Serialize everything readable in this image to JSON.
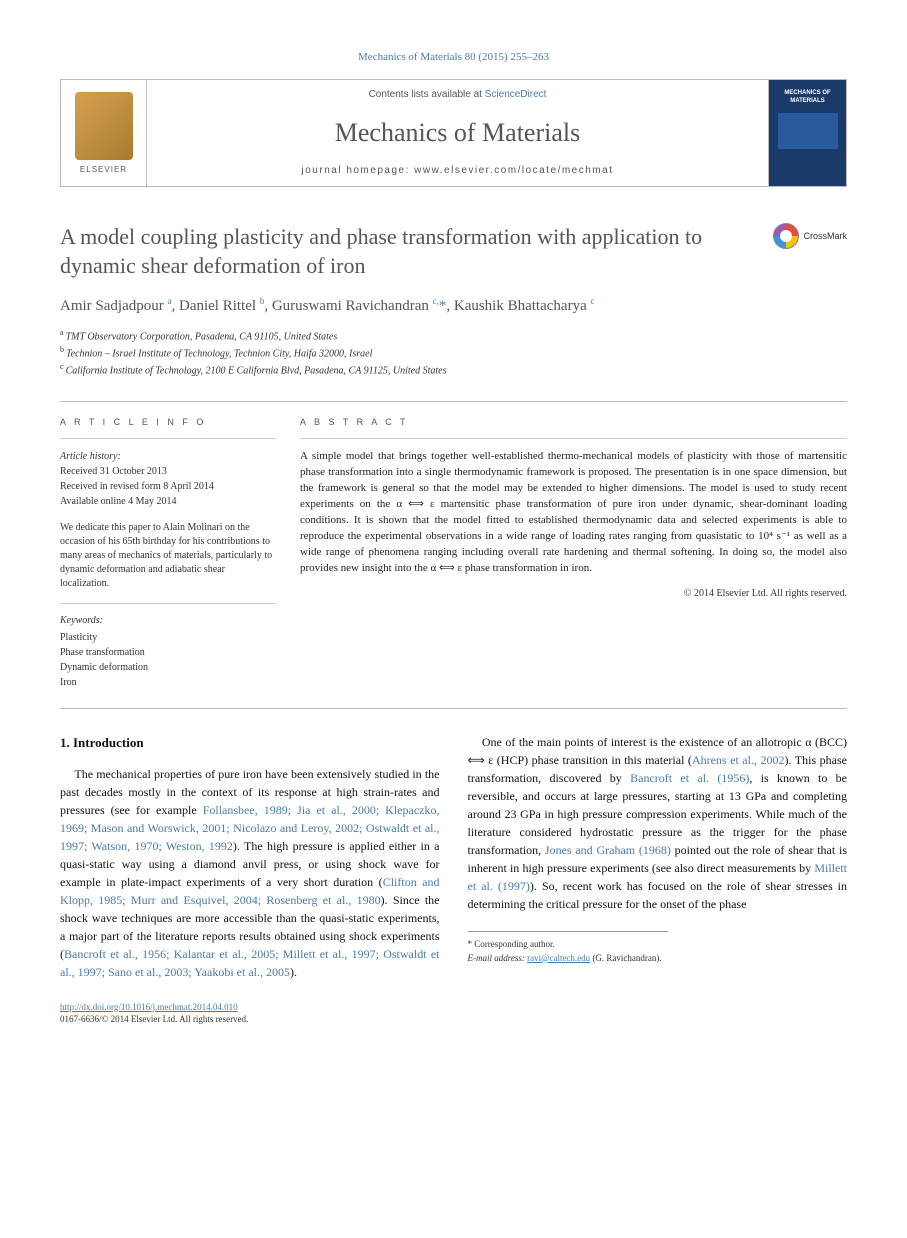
{
  "journal_ref": "Mechanics of Materials 80 (2015) 255–263",
  "header": {
    "contents_prefix": "Contents lists available at ",
    "contents_link": "ScienceDirect",
    "journal_name": "Mechanics of Materials",
    "homepage_prefix": "journal homepage: ",
    "homepage_url": "www.elsevier.com/locate/mechmat",
    "publisher": "ELSEVIER",
    "cover_title": "MECHANICS OF MATERIALS"
  },
  "title": "A model coupling plasticity and phase transformation with application to dynamic shear deformation of iron",
  "crossmark_label": "CrossMark",
  "authors_html": "Amir Sadjadpour <sup>a</sup>, Daniel Rittel <sup>b</sup>, Guruswami Ravichandran <sup>c,</sup><a class=\"author-link\" href=\"#\">*</a>, Kaushik Bhattacharya <sup>c</sup>",
  "affiliations": [
    {
      "sup": "a",
      "text": "TMT Observatory Corporation, Pasadena, CA 91105, United States"
    },
    {
      "sup": "b",
      "text": "Technion – Israel Institute of Technology, Technion City, Haifa 32000, Israel"
    },
    {
      "sup": "c",
      "text": "California Institute of Technology, 2100 E California Blvd, Pasadena, CA 91125, United States"
    }
  ],
  "article_info_header": "A R T I C L E   I N F O",
  "abstract_header": "A B S T R A C T",
  "history": {
    "label": "Article history:",
    "received": "Received 31 October 2013",
    "revised": "Received in revised form 8 April 2014",
    "online": "Available online 4 May 2014"
  },
  "dedication": "We dedicate this paper to Alain Molinari on the occasion of his 65th birthday for his contributions to many areas of mechanics of materials, particularly to dynamic deformation and adiabatic shear localization.",
  "keywords": {
    "label": "Keywords:",
    "items": [
      "Plasticity",
      "Phase transformation",
      "Dynamic deformation",
      "Iron"
    ]
  },
  "abstract": "A simple model that brings together well-established thermo-mechanical models of plasticity with those of martensitic phase transformation into a single thermodynamic framework is proposed. The presentation is in one space dimension, but the framework is general so that the model may be extended to higher dimensions. The model is used to study recent experiments on the α ⟺ ε martensitic phase transformation of pure iron under dynamic, shear-dominant loading conditions. It is shown that the model fitted to established thermodynamic data and selected experiments is able to reproduce the experimental observations in a wide range of loading rates ranging from quasistatic to 10⁴ s⁻¹ as well as a wide range of phenomena ranging including overall rate hardening and thermal softening. In doing so, the model also provides new insight into the α ⟺ ε phase transformation in iron.",
  "copyright": "© 2014 Elsevier Ltd. All rights reserved.",
  "section_heading": "1. Introduction",
  "para1_pre": "The mechanical properties of pure iron have been extensively studied in the past decades mostly in the context of its response at high strain-rates and pressures (see for example ",
  "para1_cite1": "Follansbee, 1989; Jia et al., 2000; Klepaczko, 1969; Mason and Worswick, 2001; Nicolazo and Leroy, 2002; Ostwaldt et al., 1997; Watson, 1970; Weston, 1992",
  "para1_mid": "). The high pressure is applied either in a quasi-static way using a diamond anvil press, or using shock wave for example in plate-impact experiments of a very short duration (",
  "para1_cite2": "Clifton and Klopp, 1985; Murr and Esquivel, 2004; Rosenberg et al., 1980",
  "para1_post": "). Since the shock wave techniques are more accessible than the quasi-static experiments, a major part of the literature reports results obtained using shock experiments (",
  "para1_cite3": "Bancroft et al., 1956; Kalantar et al., 2005; Millett et al., 1997; Ostwaldt et al., 1997; Sano et al., 2003; Yaakobi et al., 2005",
  "para1_end": ").",
  "para2_pre": "One of the main points of interest is the existence of an allotropic α (BCC) ⟺ ε (HCP) phase transition in this material (",
  "para2_cite1": "Ahrens et al., 2002",
  "para2_mid1": "). This phase transformation, discovered by ",
  "para2_cite2": "Bancroft et al. (1956)",
  "para2_mid2": ", is known to be reversible, and occurs at large pressures, starting at 13 GPa and completing around 23 GPa in high pressure compression experiments. While much of the literature considered hydrostatic pressure as the trigger for the phase transformation, ",
  "para2_cite3": "Jones and Graham (1968)",
  "para2_mid3": " pointed out the role of shear that is inherent in high pressure experiments (see also direct measurements by ",
  "para2_cite4": "Millett et al. (1997)",
  "para2_post": "). So, recent work has focused on the role of shear stresses in determining the critical pressure for the onset of the phase",
  "footnote": {
    "corr": "* Corresponding author.",
    "email_label": "E-mail address: ",
    "email": "ravi@caltech.edu",
    "email_who": " (G. Ravichandran)."
  },
  "footer": {
    "doi": "http://dx.doi.org/10.1016/j.mechmat.2014.04.010",
    "issn_line": "0167-6636/© 2014 Elsevier Ltd. All rights reserved."
  }
}
